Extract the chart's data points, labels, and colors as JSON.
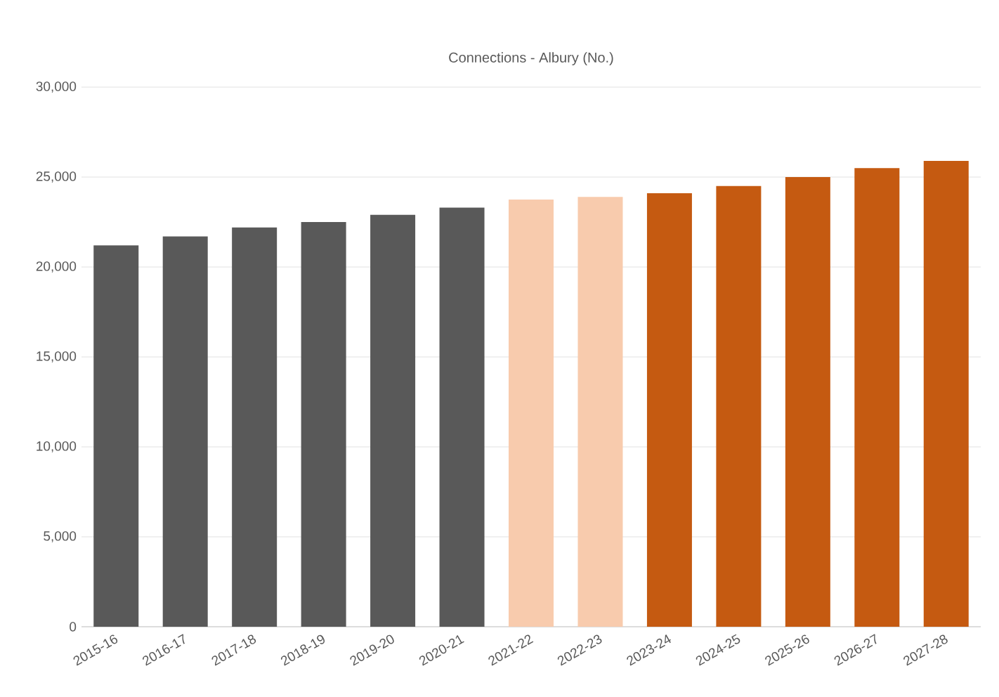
{
  "chart_data": {
    "type": "bar",
    "title": "Connections - Albury (No.)",
    "categories": [
      "2015-16",
      "2016-17",
      "2017-18",
      "2018-19",
      "2019-20",
      "2020-21",
      "2021-22",
      "2022-23",
      "2023-24",
      "2024-25",
      "2025-26",
      "2026-27",
      "2027-28"
    ],
    "values": [
      21200,
      21700,
      22200,
      22500,
      22900,
      23300,
      23750,
      23900,
      24100,
      24500,
      25000,
      25500,
      25900
    ],
    "colors": [
      "#595959",
      "#595959",
      "#595959",
      "#595959",
      "#595959",
      "#595959",
      "#f8cbad",
      "#f8cbad",
      "#c55a11",
      "#c55a11",
      "#c55a11",
      "#c55a11",
      "#c55a11"
    ],
    "ylim": [
      0,
      30000
    ],
    "yticks": [
      {
        "value": 0,
        "label": "0"
      },
      {
        "value": 5000,
        "label": "5,000"
      },
      {
        "value": 10000,
        "label": "10,000"
      },
      {
        "value": 15000,
        "label": "15,000"
      },
      {
        "value": 20000,
        "label": "20,000"
      },
      {
        "value": 25000,
        "label": "25,000"
      },
      {
        "value": 30000,
        "label": "30,000"
      }
    ],
    "grid": "y"
  }
}
